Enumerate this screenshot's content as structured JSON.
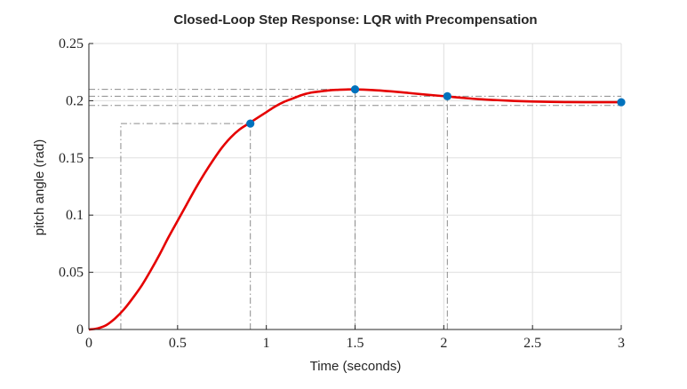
{
  "chart_data": {
    "type": "line",
    "title": "Closed-Loop Step Response: LQR with Precompensation",
    "xlabel": "Time (seconds)",
    "ylabel": "pitch angle (rad)",
    "xlim": [
      0,
      3
    ],
    "ylim": [
      0,
      0.25
    ],
    "xticks": [
      0,
      0.5,
      1,
      1.5,
      2,
      2.5,
      3
    ],
    "xtick_labels": [
      "0",
      "0.5",
      "1",
      "1.5",
      "2",
      "2.5",
      "3"
    ],
    "yticks": [
      0,
      0.05,
      0.1,
      0.15,
      0.2,
      0.25
    ],
    "ytick_labels": [
      "0",
      "0.05",
      "0.1",
      "0.15",
      "0.2",
      "0.25"
    ],
    "grid": true,
    "line_color": "#e50000",
    "marker_color": "#0072bd",
    "guide_color": "#8c8c8c",
    "series": [
      {
        "x": [
          0,
          0.05,
          0.1,
          0.15,
          0.2,
          0.25,
          0.3,
          0.35,
          0.4,
          0.45,
          0.5,
          0.55,
          0.6,
          0.65,
          0.7,
          0.75,
          0.8,
          0.85,
          0.9,
          0.95,
          1.0,
          1.05,
          1.1,
          1.15,
          1.2,
          1.25,
          1.3,
          1.35,
          1.4,
          1.45,
          1.5,
          1.6,
          1.7,
          1.8,
          1.9,
          2.0,
          2.1,
          2.2,
          2.3,
          2.4,
          2.5,
          2.6,
          2.7,
          2.8,
          2.9,
          3.0
        ],
        "values": [
          0,
          0.001,
          0.004,
          0.01,
          0.018,
          0.028,
          0.039,
          0.052,
          0.066,
          0.081,
          0.095,
          0.109,
          0.123,
          0.136,
          0.148,
          0.159,
          0.168,
          0.175,
          0.18,
          0.185,
          0.19,
          0.195,
          0.199,
          0.202,
          0.205,
          0.207,
          0.208,
          0.209,
          0.2095,
          0.2098,
          0.2099,
          0.2093,
          0.2082,
          0.2068,
          0.2053,
          0.204,
          0.2026,
          0.2013,
          0.2005,
          0.1998,
          0.1993,
          0.199,
          0.1988,
          0.1987,
          0.1987,
          0.1987
        ]
      }
    ],
    "markers": [
      {
        "x": 0.91,
        "y": 0.18
      },
      {
        "x": 1.5,
        "y": 0.2099
      },
      {
        "x": 2.02,
        "y": 0.2039
      },
      {
        "x": 3.0,
        "y": 0.1987
      }
    ],
    "guide_lines": {
      "horizontal": [
        {
          "y": 0.18,
          "x_from": 0.18,
          "x_to": 0.91
        },
        {
          "y": 0.2099,
          "x_from": 0,
          "x_to": 1.5
        },
        {
          "y": 0.2039,
          "x_from": 0,
          "x_to": 3.0
        },
        {
          "y": 0.1958,
          "x_from": 0,
          "x_to": 3.0
        }
      ],
      "vertical": [
        {
          "x": 0.18,
          "y_from": 0,
          "y_to": 0.18
        },
        {
          "x": 0.91,
          "y_from": 0,
          "y_to": 0.18
        },
        {
          "x": 1.5,
          "y_from": 0,
          "y_to": 0.2099
        },
        {
          "x": 2.02,
          "y_from": 0,
          "y_to": 0.2039
        }
      ]
    }
  }
}
